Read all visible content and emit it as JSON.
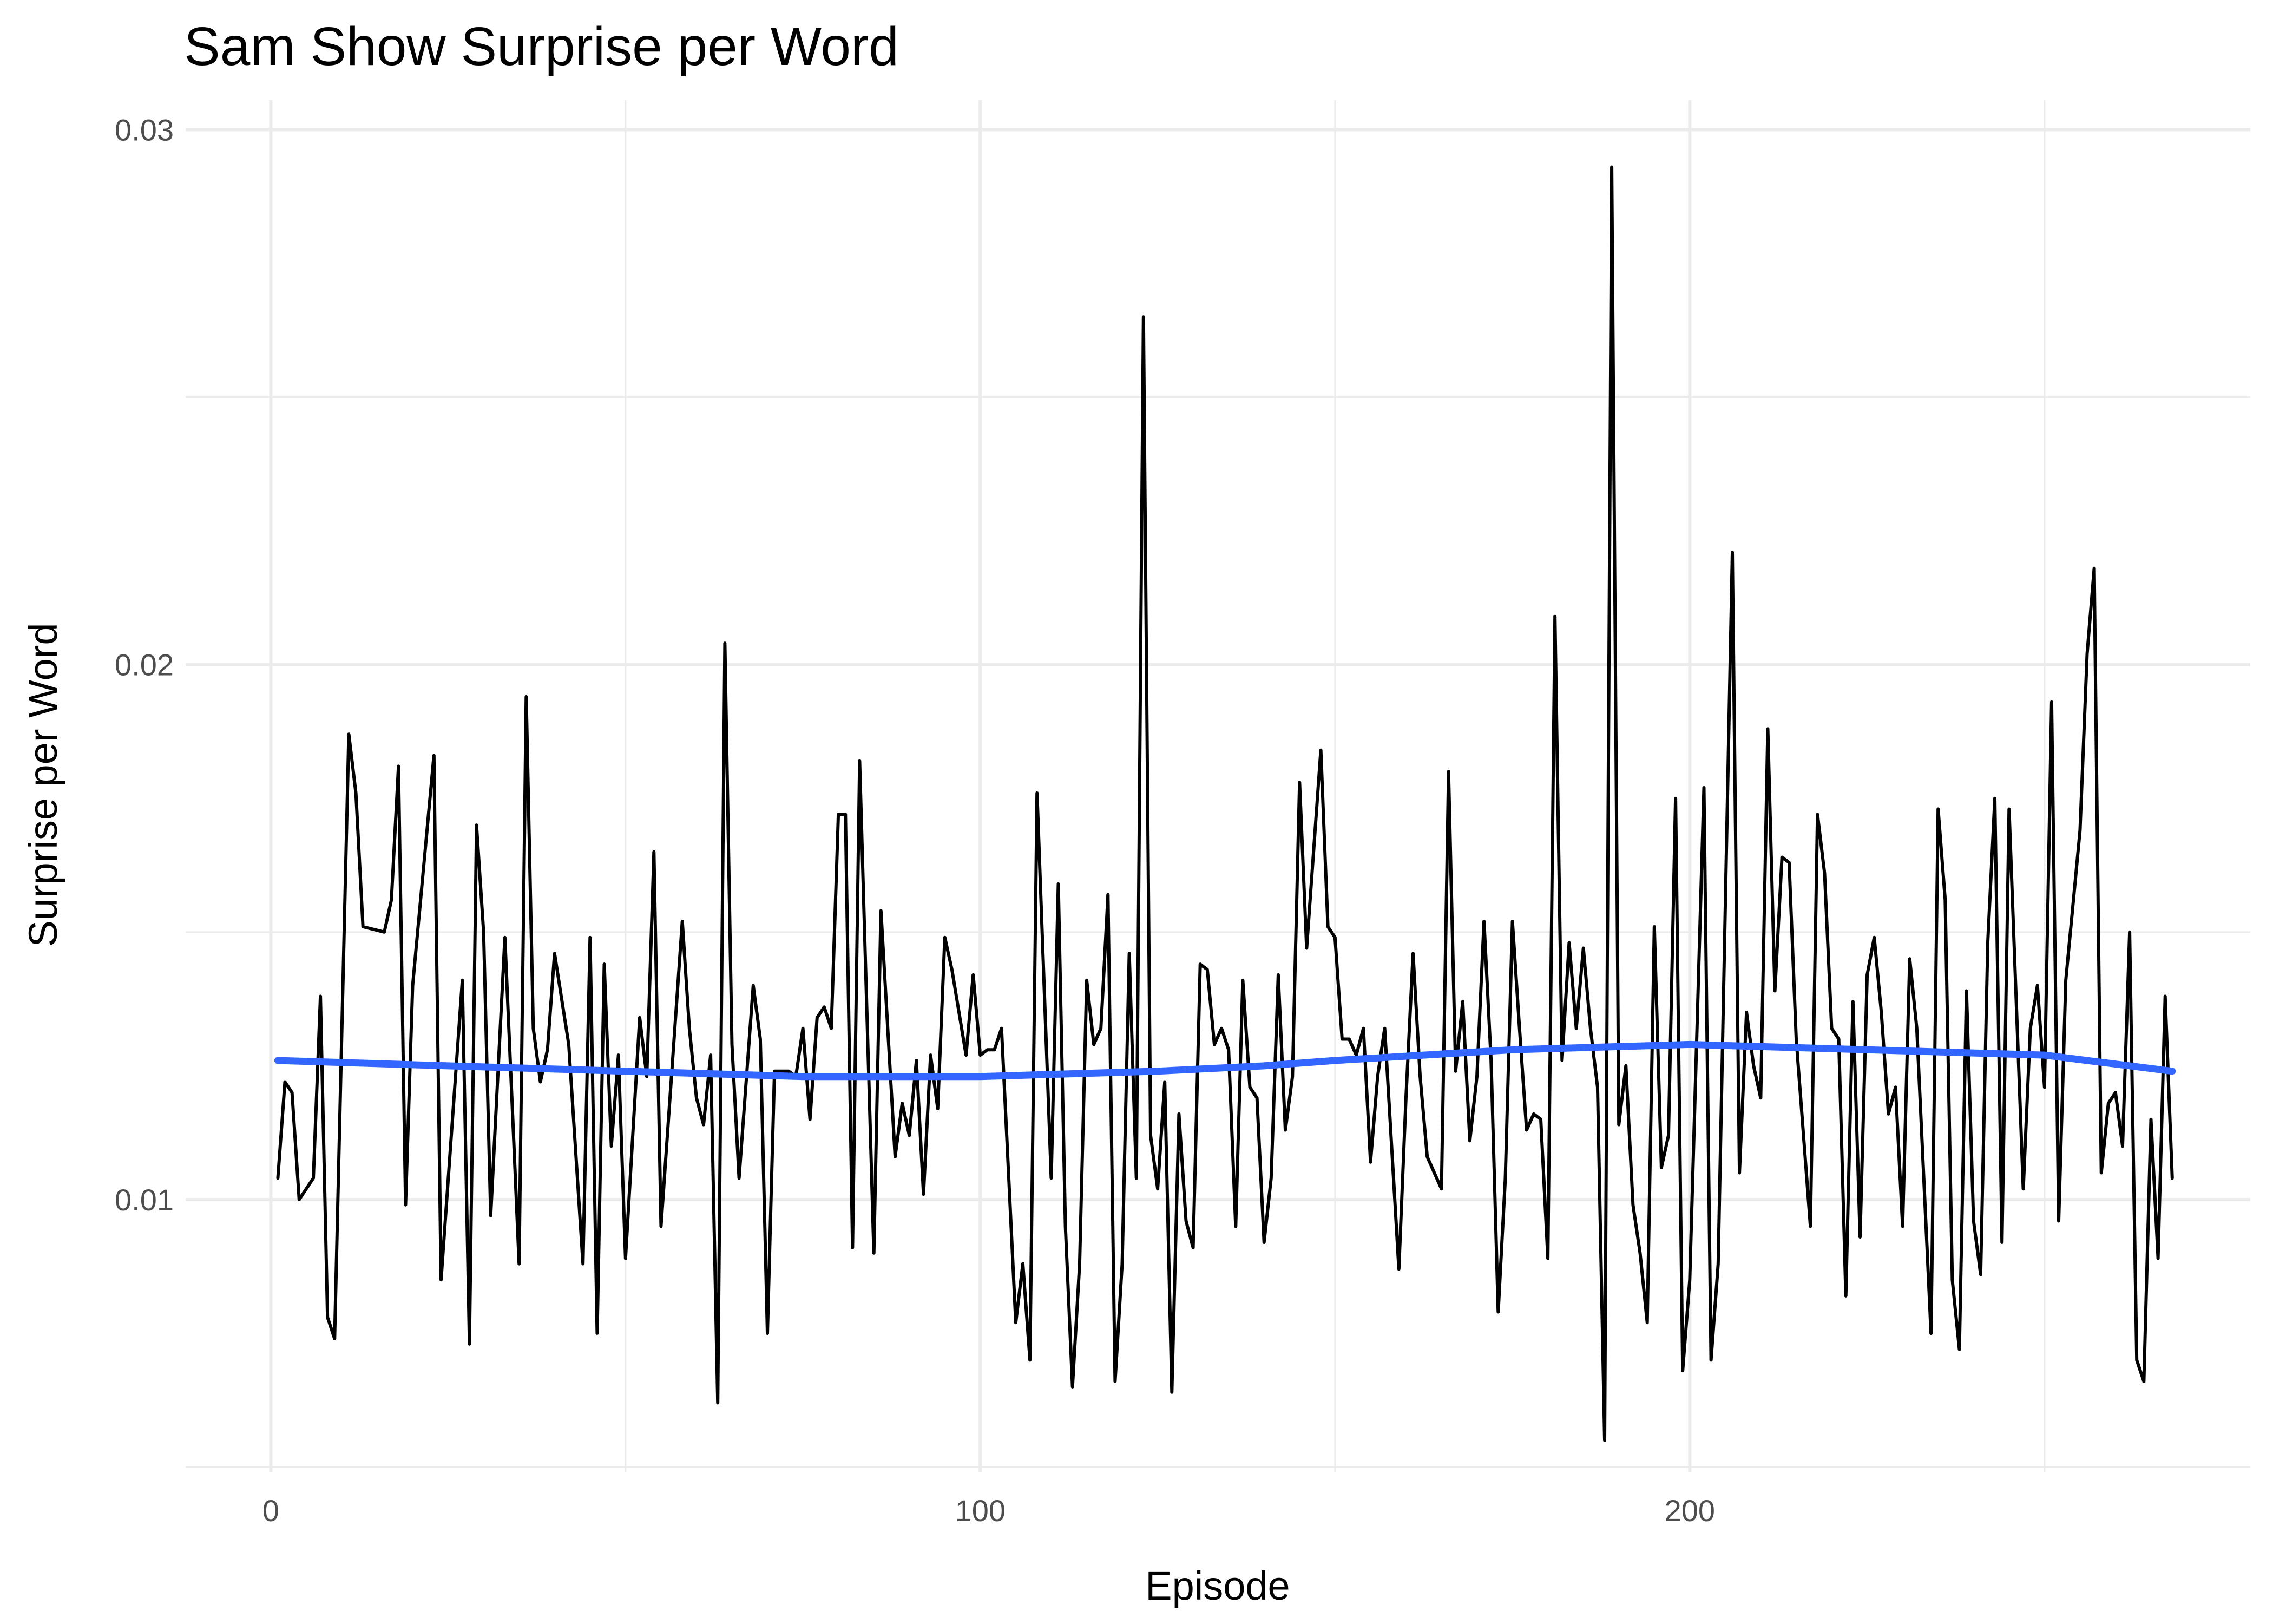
{
  "chart_data": {
    "type": "line",
    "title": "Sam Show Surprise per Word",
    "xlabel": "Episode",
    "ylabel": "Surprise per Word",
    "xlim": [
      -12,
      279
    ],
    "ylim": [
      0.0049,
      0.03055
    ],
    "xticks": [
      0,
      100,
      200
    ],
    "yticks": [
      0.01,
      0.02,
      0.03
    ],
    "xminor": [
      50,
      150,
      250
    ],
    "yminor": [
      0.005,
      0.015,
      0.025
    ],
    "grid": true,
    "series": [
      {
        "color": "#000000",
        "x": [
          1,
          2,
          3,
          4,
          6,
          7,
          8,
          9,
          11,
          12,
          13,
          16,
          17,
          18,
          19,
          20,
          23,
          24,
          27,
          28,
          29,
          30,
          31,
          33,
          35,
          36,
          37,
          38,
          39,
          40,
          42,
          44,
          45,
          46,
          47,
          48,
          49,
          50,
          52,
          53,
          54,
          55,
          58,
          59,
          60,
          61,
          62,
          63,
          64,
          65,
          66,
          68,
          69,
          70,
          71,
          73,
          74,
          75,
          76,
          77,
          78,
          79,
          80,
          81,
          82,
          83,
          85,
          86,
          88,
          89,
          90,
          91,
          92,
          93,
          94,
          95,
          96,
          98,
          99,
          100,
          101,
          102,
          103,
          105,
          106,
          107,
          108,
          110,
          111,
          112,
          113,
          114,
          115,
          116,
          117,
          118,
          119,
          120,
          121,
          122,
          123,
          124,
          125,
          126,
          127,
          128,
          129,
          130,
          131,
          132,
          133,
          134,
          135,
          136,
          137,
          138,
          139,
          140,
          141,
          142,
          143,
          144,
          145,
          146,
          148,
          149,
          150,
          151,
          152,
          153,
          154,
          155,
          156,
          157,
          159,
          160,
          161,
          162,
          163,
          165,
          166,
          167,
          168,
          169,
          170,
          171,
          172,
          173,
          174,
          175,
          176,
          177,
          178,
          179,
          180,
          181,
          182,
          183,
          184,
          185,
          186,
          187,
          188,
          189,
          190,
          191,
          192,
          193,
          194,
          195,
          196,
          197,
          198,
          199,
          200,
          202,
          203,
          204,
          206,
          207,
          208,
          209,
          210,
          211,
          212,
          213,
          214,
          215,
          217,
          218,
          219,
          220,
          221,
          222,
          223,
          224,
          225,
          226,
          227,
          228,
          229,
          230,
          231,
          232,
          234,
          235,
          236,
          237,
          238,
          239,
          240,
          241,
          242,
          243,
          244,
          245,
          247,
          248,
          249,
          250,
          251,
          252,
          253,
          254,
          255,
          256,
          257,
          258,
          259,
          260,
          261,
          262,
          263,
          264,
          265,
          266,
          267,
          268
        ],
        "values": [
          0.0104,
          0.0122,
          0.012,
          0.01,
          0.0104,
          0.0138,
          0.0078,
          0.0074,
          0.0187,
          0.0176,
          0.0151,
          0.015,
          0.0156,
          0.0181,
          0.0099,
          0.014,
          0.0183,
          0.0085,
          0.0141,
          0.0073,
          0.017,
          0.015,
          0.0097,
          0.0149,
          0.0088,
          0.0194,
          0.0132,
          0.0122,
          0.0128,
          0.0146,
          0.0129,
          0.0088,
          0.0149,
          0.0075,
          0.0144,
          0.011,
          0.0127,
          0.0089,
          0.0134,
          0.0123,
          0.0165,
          0.0095,
          0.0152,
          0.0132,
          0.0119,
          0.0114,
          0.0127,
          0.0062,
          0.0204,
          0.0129,
          0.0104,
          0.014,
          0.013,
          0.0075,
          0.0124,
          0.0124,
          0.0123,
          0.0132,
          0.0115,
          0.0134,
          0.0136,
          0.0132,
          0.0172,
          0.0172,
          0.0091,
          0.0182,
          0.009,
          0.0154,
          0.0108,
          0.0118,
          0.0112,
          0.0126,
          0.0101,
          0.0127,
          0.0117,
          0.0149,
          0.0143,
          0.0127,
          0.0142,
          0.0127,
          0.0128,
          0.0128,
          0.0132,
          0.0077,
          0.0088,
          0.007,
          0.0176,
          0.0104,
          0.0159,
          0.0095,
          0.0065,
          0.0088,
          0.0141,
          0.0129,
          0.0132,
          0.0157,
          0.0066,
          0.0088,
          0.0146,
          0.0104,
          0.0265,
          0.0112,
          0.0102,
          0.0122,
          0.0064,
          0.0116,
          0.0096,
          0.0091,
          0.0144,
          0.0143,
          0.0129,
          0.0132,
          0.0128,
          0.0095,
          0.0141,
          0.0121,
          0.0119,
          0.0092,
          0.0104,
          0.0142,
          0.0113,
          0.0123,
          0.0178,
          0.0147,
          0.0184,
          0.0151,
          0.0149,
          0.013,
          0.013,
          0.0127,
          0.0132,
          0.0107,
          0.0123,
          0.0132,
          0.0087,
          0.0119,
          0.0146,
          0.0123,
          0.0108,
          0.0102,
          0.018,
          0.0124,
          0.0137,
          0.0111,
          0.0123,
          0.0152,
          0.0126,
          0.0079,
          0.0104,
          0.0152,
          0.0132,
          0.0113,
          0.0116,
          0.0115,
          0.0089,
          0.0209,
          0.0126,
          0.0148,
          0.0132,
          0.0147,
          0.0132,
          0.0121,
          0.0055,
          0.0293,
          0.0114,
          0.0125,
          0.0099,
          0.009,
          0.0077,
          0.0151,
          0.0106,
          0.0112,
          0.0175,
          0.0068,
          0.0085,
          0.0177,
          0.007,
          0.0088,
          0.0221,
          0.0105,
          0.0135,
          0.0125,
          0.0119,
          0.0188,
          0.0139,
          0.0164,
          0.0163,
          0.013,
          0.0095,
          0.0172,
          0.0161,
          0.0132,
          0.013,
          0.0082,
          0.0137,
          0.0093,
          0.0142,
          0.0149,
          0.0135,
          0.0116,
          0.0121,
          0.0095,
          0.0145,
          0.0132,
          0.0075,
          0.0173,
          0.0156,
          0.0085,
          0.0072,
          0.0139,
          0.0096,
          0.0086,
          0.0148,
          0.0175,
          0.0092,
          0.0173,
          0.0102,
          0.0132,
          0.014,
          0.0121,
          0.0193,
          0.0096,
          0.0141,
          0.0155,
          0.0169,
          0.0202,
          0.0218,
          0.0105,
          0.0118,
          0.012,
          0.011,
          0.015,
          0.007,
          0.0066,
          0.0115,
          0.0089,
          0.0138,
          0.0104
        ]
      },
      {
        "color": "#3366ff",
        "x": [
          1,
          25,
          50,
          75,
          100,
          125,
          140,
          150,
          175,
          200,
          225,
          250,
          268
        ],
        "values": [
          0.0126,
          0.0125,
          0.0124,
          0.0123,
          0.0123,
          0.0124,
          0.0125,
          0.0126,
          0.0128,
          0.0129,
          0.0128,
          0.0127,
          0.0124
        ]
      }
    ]
  }
}
